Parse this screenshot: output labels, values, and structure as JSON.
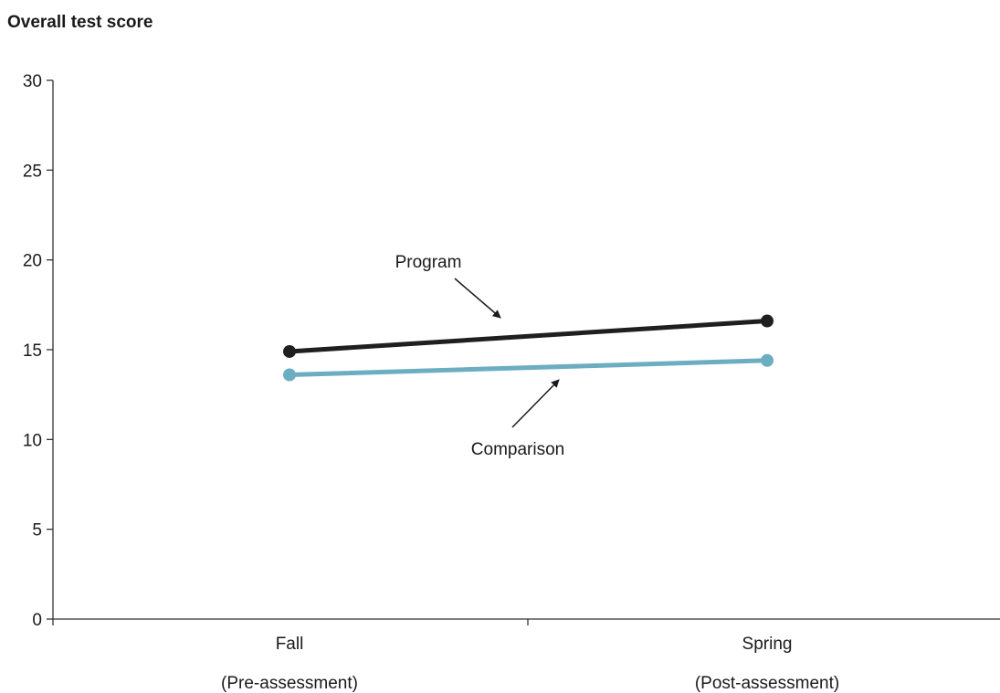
{
  "chart_data": {
    "type": "line",
    "title": "",
    "ylabel": "Overall test score",
    "xlabel": "",
    "ylim": [
      0,
      30
    ],
    "yticks": [
      0,
      5,
      10,
      15,
      20,
      25,
      30
    ],
    "categories": [
      {
        "line1": "Fall",
        "line2": "(Pre-assessment)"
      },
      {
        "line1": "Spring",
        "line2": "(Post-assessment)"
      }
    ],
    "series": [
      {
        "name": "Program",
        "values": [
          14.9,
          16.6
        ],
        "color": "#1f1f1f"
      },
      {
        "name": "Comparison",
        "values": [
          13.6,
          14.4
        ],
        "color": "#6cadc2"
      }
    ],
    "grid": false,
    "legend": "annotated with arrows"
  }
}
